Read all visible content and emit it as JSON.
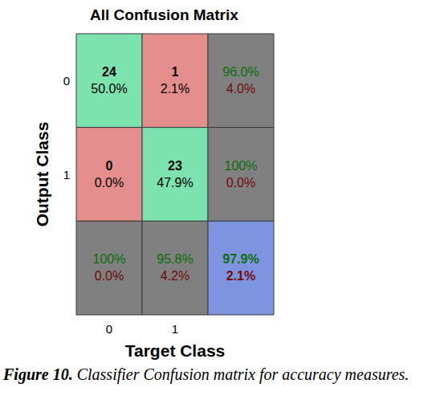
{
  "chart_data": {
    "type": "confusion_matrix",
    "title": "All Confusion Matrix",
    "x_label": "Target Class",
    "y_label": "Output Class",
    "x_categories": [
      "0",
      "1",
      null
    ],
    "y_categories": [
      "0",
      "1",
      null
    ],
    "cells": [
      [
        {
          "count": 24,
          "percent": 50.0,
          "percent_label": "50.0%",
          "color": "#7de3ae"
        },
        {
          "count": 1,
          "percent": 2.1,
          "percent_label": "2.1%",
          "color": "#e58e8e"
        },
        {
          "correct": 96.0,
          "correct_label": "96.0%",
          "wrong": 4.0,
          "wrong_label": "4.0%",
          "color": "#808080"
        }
      ],
      [
        {
          "count": 0,
          "percent": 0.0,
          "percent_label": "0.0%",
          "color": "#e58e8e"
        },
        {
          "count": 23,
          "percent": 47.9,
          "percent_label": "47.9%",
          "color": "#7de3ae"
        },
        {
          "correct": 100,
          "correct_label": "100%",
          "wrong": 0.0,
          "wrong_label": "0.0%",
          "color": "#808080"
        }
      ],
      [
        {
          "correct": 100,
          "correct_label": "100%",
          "wrong": 0.0,
          "wrong_label": "0.0%",
          "color": "#808080"
        },
        {
          "correct": 95.8,
          "correct_label": "95.8%",
          "wrong": 4.2,
          "wrong_label": "4.2%",
          "color": "#808080"
        },
        {
          "correct": 97.9,
          "correct_label": "97.9%",
          "wrong": 2.1,
          "wrong_label": "2.1%",
          "color": "#7f94e0"
        }
      ]
    ],
    "caption_label": "Figure 10.",
    "caption": "Classifier Confusion matrix for accuracy measures."
  }
}
